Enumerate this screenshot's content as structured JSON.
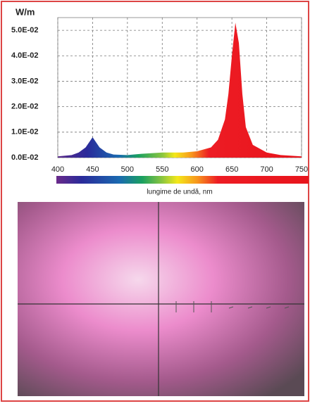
{
  "chart_data": {
    "type": "area",
    "y_label": "W/m",
    "x_label": "lungime de undă, nm",
    "x": [
      400,
      420,
      430,
      440,
      445,
      450,
      455,
      460,
      470,
      480,
      500,
      520,
      550,
      580,
      600,
      620,
      630,
      640,
      645,
      650,
      655,
      660,
      665,
      670,
      680,
      700,
      720,
      750
    ],
    "values": [
      0.0005,
      0.001,
      0.002,
      0.004,
      0.006,
      0.008,
      0.006,
      0.004,
      0.002,
      0.0012,
      0.001,
      0.0015,
      0.002,
      0.002,
      0.0025,
      0.004,
      0.007,
      0.015,
      0.025,
      0.04,
      0.053,
      0.045,
      0.025,
      0.012,
      0.005,
      0.002,
      0.001,
      0.0005
    ],
    "xlim": [
      400,
      750
    ],
    "xticks": [
      400,
      450,
      500,
      550,
      600,
      650,
      700,
      750
    ],
    "ylim": [
      0,
      0.055
    ],
    "yticks": [
      {
        "value": 0,
        "label": "0.0E-02"
      },
      {
        "value": 0.01,
        "label": "1.0E-02"
      },
      {
        "value": 0.02,
        "label": "2.0E-02"
      },
      {
        "value": 0.03,
        "label": "3.0E-02"
      },
      {
        "value": 0.04,
        "label": "4.0E-02"
      },
      {
        "value": 0.05,
        "label": "5.0E-02"
      }
    ],
    "grid": true
  }
}
